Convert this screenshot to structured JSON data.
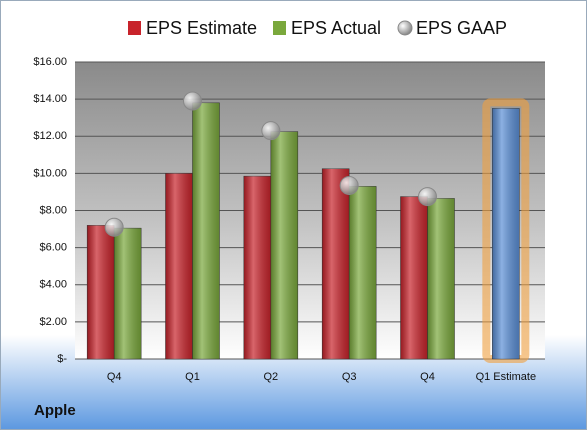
{
  "chart_data": {
    "type": "bar",
    "title": "Apple",
    "categories": [
      "Q4",
      "Q1",
      "Q2",
      "Q3",
      "Q4",
      "Q1 Estimate"
    ],
    "series": [
      {
        "name": "EPS Estimate",
        "color": "#c8232b",
        "values": [
          7.2,
          10.0,
          9.85,
          10.25,
          8.75,
          13.5
        ],
        "point_colors": [
          "#c8232b",
          "#c8232b",
          "#c8232b",
          "#c8232b",
          "#c8232b",
          "#5b8fd6"
        ]
      },
      {
        "name": "EPS Actual",
        "color": "#7aa83c",
        "values": [
          7.05,
          13.8,
          12.25,
          9.3,
          8.65,
          null
        ]
      },
      {
        "name": "EPS GAAP",
        "color": "#a8a8a8",
        "marker": "circle",
        "values": [
          7.1,
          13.9,
          12.3,
          9.35,
          8.75,
          null
        ]
      }
    ],
    "ylim": [
      0,
      16
    ],
    "yticks": [
      {
        "value": 0,
        "label": "$-"
      },
      {
        "value": 2,
        "label": "$2.00"
      },
      {
        "value": 4,
        "label": "$4.00"
      },
      {
        "value": 6,
        "label": "$6.00"
      },
      {
        "value": 8,
        "label": "$8.00"
      },
      {
        "value": 10,
        "label": "$10.00"
      },
      {
        "value": 12,
        "label": "$12.00"
      },
      {
        "value": 14,
        "label": "$14.00"
      },
      {
        "value": 16,
        "label": "$16.00"
      }
    ],
    "grid": true,
    "legend": "top"
  }
}
